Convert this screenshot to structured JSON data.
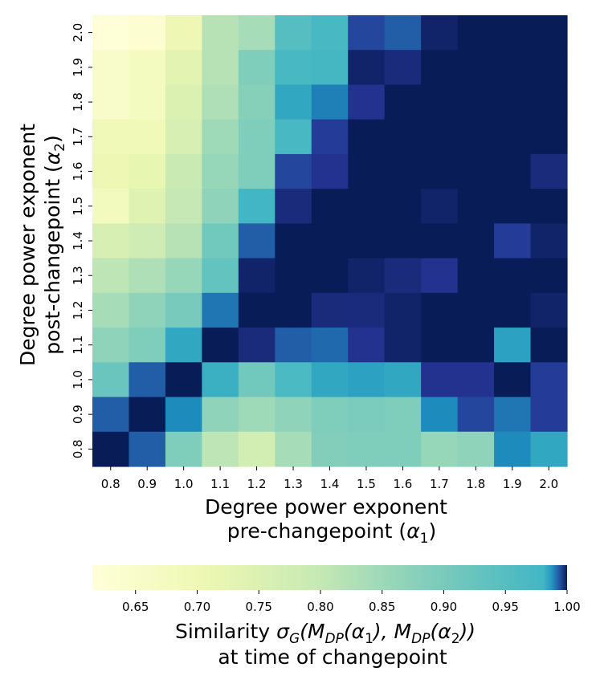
{
  "chart_data": {
    "type": "heatmap",
    "xlabel_line1": "Degree power exponent",
    "xlabel_line2": "pre-changepoint (",
    "xlabel_sym": "α",
    "xlabel_sub": "1",
    "xlabel_close": ")",
    "ylabel_line1": "Degree power exponent",
    "ylabel_line2": "post-changepoint (",
    "ylabel_sym": "α",
    "ylabel_sub": "2",
    "ylabel_close": ")",
    "x_categories": [
      "0.8",
      "0.9",
      "1.0",
      "1.1",
      "1.2",
      "1.3",
      "1.4",
      "1.5",
      "1.6",
      "1.7",
      "1.8",
      "1.9",
      "2.0"
    ],
    "y_categories": [
      "2.0",
      "1.9",
      "1.8",
      "1.7",
      "1.6",
      "1.5",
      "1.4",
      "1.3",
      "1.2",
      "1.1",
      "1.0",
      "0.9",
      "0.8"
    ],
    "values": [
      [
        0.62,
        0.63,
        0.7,
        0.82,
        0.84,
        0.95,
        0.97,
        0.995,
        0.993,
        0.999,
        1.0,
        1.0,
        1.0
      ],
      [
        0.65,
        0.67,
        0.73,
        0.82,
        0.89,
        0.97,
        0.975,
        0.999,
        0.998,
        1.0,
        1.0,
        1.0,
        1.0
      ],
      [
        0.65,
        0.67,
        0.75,
        0.83,
        0.88,
        0.985,
        0.99,
        0.997,
        1.0,
        1.0,
        1.0,
        1.0,
        1.0
      ],
      [
        0.69,
        0.69,
        0.76,
        0.85,
        0.89,
        0.97,
        0.996,
        1.0,
        1.0,
        1.0,
        1.0,
        1.0,
        1.0
      ],
      [
        0.7,
        0.72,
        0.79,
        0.86,
        0.89,
        0.995,
        0.997,
        1.0,
        1.0,
        1.0,
        1.0,
        1.0,
        0.998
      ],
      [
        0.68,
        0.74,
        0.8,
        0.87,
        0.98,
        0.998,
        1.0,
        1.0,
        1.0,
        0.999,
        1.0,
        1.0,
        1.0
      ],
      [
        0.76,
        0.78,
        0.82,
        0.91,
        0.993,
        1.0,
        1.0,
        1.0,
        1.0,
        1.0,
        1.0,
        0.996,
        0.999
      ],
      [
        0.81,
        0.83,
        0.86,
        0.93,
        0.999,
        1.0,
        1.0,
        0.999,
        0.998,
        0.997,
        1.0,
        1.0,
        1.0
      ],
      [
        0.84,
        0.87,
        0.9,
        0.991,
        1.0,
        1.0,
        0.998,
        0.998,
        0.999,
        1.0,
        1.0,
        1.0,
        0.999
      ],
      [
        0.87,
        0.89,
        0.985,
        1.0,
        0.998,
        0.993,
        0.992,
        0.997,
        0.999,
        1.0,
        1.0,
        0.986,
        1.0
      ],
      [
        0.92,
        0.993,
        1.0,
        0.983,
        0.91,
        0.965,
        0.985,
        0.986,
        0.985,
        0.997,
        0.997,
        1.0,
        0.996
      ],
      [
        0.993,
        1.0,
        0.989,
        0.87,
        0.85,
        0.87,
        0.89,
        0.895,
        0.89,
        0.989,
        0.995,
        0.991,
        0.996
      ],
      [
        1.0,
        0.993,
        0.89,
        0.81,
        0.77,
        0.84,
        0.885,
        0.89,
        0.89,
        0.86,
        0.87,
        0.989,
        0.985
      ]
    ],
    "colorbar": {
      "ticks": [
        "0.65",
        "0.70",
        "0.75",
        "0.80",
        "0.85",
        "0.90",
        "0.95",
        "1.00"
      ],
      "range": [
        0.615,
        1.0
      ],
      "label_prefix": "Similarity ",
      "label_expr": "σ",
      "label_sub_G": "G",
      "label_mid1": "(M",
      "label_sub_DP": "DP",
      "label_arg1_open": "(α",
      "label_arg_sub1": "1",
      "label_mid2": "), M",
      "label_arg2_open": "(α",
      "label_arg_sub2": "2",
      "label_end": "))",
      "label_line2": "at time of changepoint"
    },
    "colormap": "YlGnBu",
    "colormap_stops": [
      [
        0.0,
        "#ffffd9"
      ],
      [
        0.125,
        "#edf8b1"
      ],
      [
        0.25,
        "#c7e9b4"
      ],
      [
        0.375,
        "#7fcdbb"
      ],
      [
        0.5,
        "#41b6c4"
      ],
      [
        0.625,
        "#1d91c0"
      ],
      [
        0.75,
        "#225ea8"
      ],
      [
        0.875,
        "#253494"
      ],
      [
        1.0,
        "#081d58"
      ]
    ],
    "colorbar_gamma": 9
  }
}
